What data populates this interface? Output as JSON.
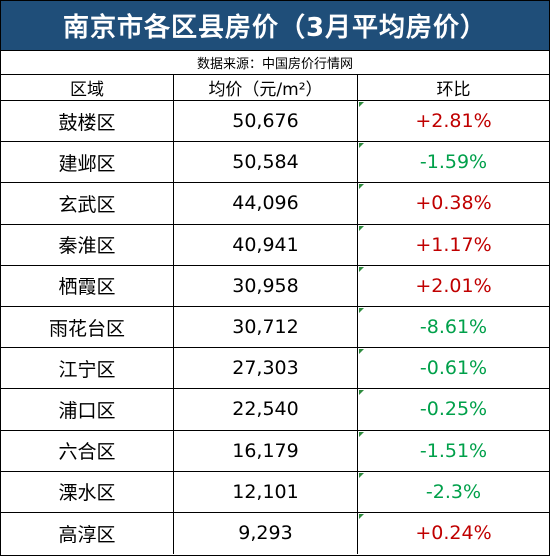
{
  "title": "南京市各区县房价（3月平均房价）",
  "source": "数据来源：中国房价行情网",
  "headers": {
    "district": "区域",
    "avg_price": "均价（元/m²）",
    "change": "环比"
  },
  "colors": {
    "title_bg": "#1f4e79",
    "increase": "#c00000",
    "decrease": "#00a04a"
  },
  "rows": [
    {
      "district": "鼓楼区",
      "price": "50,676",
      "change": "+2.81%",
      "direction": "up"
    },
    {
      "district": "建邺区",
      "price": "50,584",
      "change": "-1.59%",
      "direction": "down"
    },
    {
      "district": "玄武区",
      "price": "44,096",
      "change": "+0.38%",
      "direction": "up"
    },
    {
      "district": "秦淮区",
      "price": "40,941",
      "change": "+1.17%",
      "direction": "up"
    },
    {
      "district": "栖霞区",
      "price": "30,958",
      "change": "+2.01%",
      "direction": "up"
    },
    {
      "district": "雨花台区",
      "price": "30,712",
      "change": "-8.61%",
      "direction": "down"
    },
    {
      "district": "江宁区",
      "price": "27,303",
      "change": "-0.61%",
      "direction": "down"
    },
    {
      "district": "浦口区",
      "price": "22,540",
      "change": "-0.25%",
      "direction": "down"
    },
    {
      "district": "六合区",
      "price": "16,179",
      "change": "-1.51%",
      "direction": "down"
    },
    {
      "district": "溧水区",
      "price": "12,101",
      "change": "-2.3%",
      "direction": "down"
    },
    {
      "district": "高淳区",
      "price": "9,293",
      "change": "+0.24%",
      "direction": "up"
    }
  ]
}
